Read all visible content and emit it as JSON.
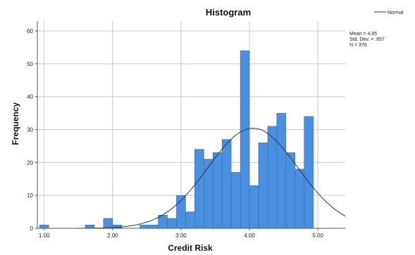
{
  "chart_data": {
    "type": "bar",
    "title": "Histogram",
    "xlabel": "Credit Risk",
    "ylabel": "Frequency",
    "xlim": [
      0.9,
      5.4
    ],
    "ylim": [
      0,
      63
    ],
    "grid": true,
    "bin_width": 0.1333,
    "bins": [
      {
        "x_start": 0.9333,
        "count": 1
      },
      {
        "x_start": 1.6,
        "count": 1
      },
      {
        "x_start": 1.8667,
        "count": 3
      },
      {
        "x_start": 2.0,
        "count": 1
      },
      {
        "x_start": 2.4,
        "count": 1
      },
      {
        "x_start": 2.5333,
        "count": 1
      },
      {
        "x_start": 2.6667,
        "count": 4
      },
      {
        "x_start": 2.8,
        "count": 3
      },
      {
        "x_start": 2.9333,
        "count": 10
      },
      {
        "x_start": 3.0667,
        "count": 5
      },
      {
        "x_start": 3.2,
        "count": 24
      },
      {
        "x_start": 3.3333,
        "count": 21
      },
      {
        "x_start": 3.4667,
        "count": 23
      },
      {
        "x_start": 3.6,
        "count": 27
      },
      {
        "x_start": 3.7333,
        "count": 17
      },
      {
        "x_start": 3.8667,
        "count": 54
      },
      {
        "x_start": 4.0,
        "count": 13
      },
      {
        "x_start": 4.1333,
        "count": 26
      },
      {
        "x_start": 4.2667,
        "count": 31
      },
      {
        "x_start": 4.4,
        "count": 35
      },
      {
        "x_start": 4.5333,
        "count": 23
      },
      {
        "x_start": 4.6667,
        "count": 18
      },
      {
        "x_start": 4.8,
        "count": 34
      }
    ],
    "x_ticks": [
      "1.00",
      "2.00",
      "3.00",
      "4.00",
      "5.00"
    ],
    "x_tick_values": [
      1,
      2,
      3,
      4,
      5
    ],
    "y_ticks": [
      "0",
      "10",
      "20",
      "30",
      "40",
      "50",
      "60"
    ],
    "y_tick_values": [
      0,
      10,
      20,
      30,
      40,
      50,
      60
    ],
    "normal_curve": {
      "mean": 4.05,
      "sd": 0.657,
      "n": 376
    },
    "legend": {
      "label": "Normal",
      "placement": "top-right"
    },
    "stats": [
      "Mean = 4.05",
      "Std. Dev. = .657",
      "N = 376"
    ],
    "colors": {
      "bar": "#4a8fe0",
      "bar_stroke": "#2f6cb8",
      "curve": "#333333",
      "grid": "#c8c8c8",
      "axis": "#555555"
    }
  }
}
